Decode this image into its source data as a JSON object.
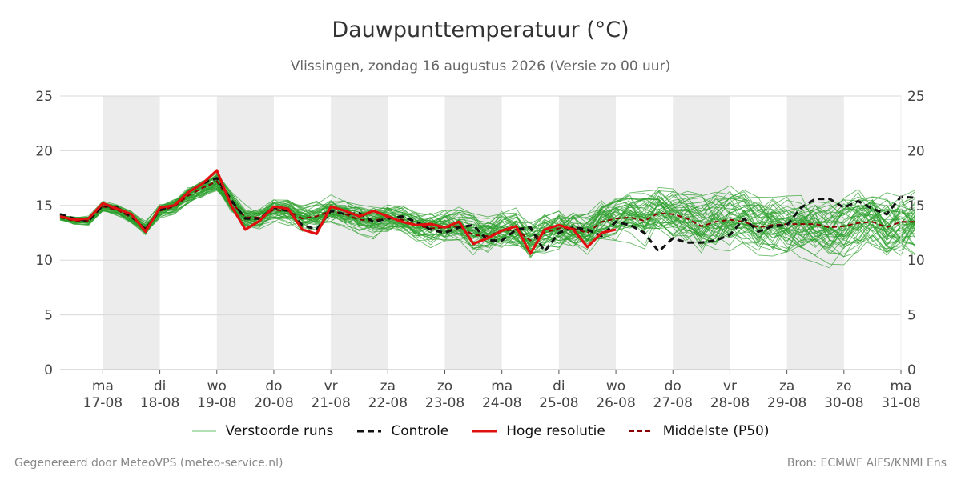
{
  "title": "Dauwpunttemperatuur (°C)",
  "subtitle": "Vlissingen, zondag 16 augustus 2026 (Versie zo 00 uur)",
  "footer": {
    "left": "Gegenereerd door MeteoVPS (meteo-service.nl)",
    "right": "Bron: ECMWF AIFS/KNMI Ens"
  },
  "legend": [
    {
      "label": "Verstoorde runs",
      "color": "#2ca02c",
      "style": "thin"
    },
    {
      "label": "Controle",
      "color": "#111111",
      "style": "dashed"
    },
    {
      "label": "Hoge resolutie",
      "color": "#e01010",
      "style": "solid"
    },
    {
      "label": "Middelste (P50)",
      "color": "#8b0000",
      "style": "dashed"
    }
  ],
  "chart_data": {
    "type": "line",
    "xlabel": "",
    "ylabel": "",
    "ylim": [
      0,
      25
    ],
    "yticks": [
      0,
      5,
      10,
      15,
      20,
      25
    ],
    "x_start": "2026-08-16T06:00",
    "x_end": "2026-08-31T00:00",
    "x_step_hours": 6,
    "day_ticks": [
      {
        "day": "ma",
        "date": "17-08",
        "shaded": true
      },
      {
        "day": "di",
        "date": "18-08",
        "shaded": false
      },
      {
        "day": "wo",
        "date": "19-08",
        "shaded": true
      },
      {
        "day": "do",
        "date": "20-08",
        "shaded": false
      },
      {
        "day": "vr",
        "date": "21-08",
        "shaded": true
      },
      {
        "day": "za",
        "date": "22-08",
        "shaded": false
      },
      {
        "day": "zo",
        "date": "23-08",
        "shaded": true
      },
      {
        "day": "ma",
        "date": "24-08",
        "shaded": false
      },
      {
        "day": "di",
        "date": "25-08",
        "shaded": true
      },
      {
        "day": "wo",
        "date": "26-08",
        "shaded": false
      },
      {
        "day": "do",
        "date": "27-08",
        "shaded": true
      },
      {
        "day": "vr",
        "date": "28-08",
        "shaded": false
      },
      {
        "day": "za",
        "date": "29-08",
        "shaded": true
      },
      {
        "day": "zo",
        "date": "30-08",
        "shaded": false
      },
      {
        "day": "ma",
        "date": "31-08",
        "shaded": false
      }
    ],
    "grid": true,
    "series": [
      {
        "name": "Controle",
        "color": "#111111",
        "dash": "8,5",
        "values": [
          14.2,
          13.8,
          13.6,
          15.0,
          14.8,
          14.0,
          12.8,
          14.6,
          15.0,
          16.2,
          17.0,
          17.5,
          15.5,
          13.8,
          13.8,
          14.8,
          14.5,
          13.2,
          12.8,
          14.5,
          14.2,
          14.3,
          13.5,
          13.8,
          14.0,
          13.5,
          12.8,
          12.5,
          13.0,
          13.2,
          11.8,
          11.8,
          12.8,
          13.0,
          10.8,
          12.5,
          13.0,
          12.8,
          12.2,
          13.5,
          13.2,
          12.5,
          10.8,
          12.0,
          11.6,
          11.6,
          11.8,
          12.3,
          13.8,
          12.6,
          13.1,
          13.2,
          14.8,
          15.6,
          15.6,
          14.8,
          15.4,
          14.7,
          14.2,
          15.8,
          15.7
        ]
      },
      {
        "name": "Hoge resolutie",
        "color": "#e01010",
        "dash": "",
        "values": [
          14.0,
          13.7,
          13.8,
          15.2,
          14.7,
          14.2,
          12.6,
          14.8,
          15.0,
          16.2,
          17.0,
          18.2,
          15.0,
          12.8,
          13.6,
          14.9,
          14.7,
          12.8,
          12.4,
          14.9,
          14.5,
          14.0,
          14.5,
          14.0,
          13.5,
          13.2,
          13.3,
          13.0,
          13.5,
          11.5,
          12.0,
          12.7,
          13.1,
          10.6,
          12.8,
          13.2,
          12.8,
          11.2,
          12.5,
          12.8
        ]
      },
      {
        "name": "Middelste (P50)",
        "color": "#8b0000",
        "dash": "6,4",
        "values": [
          13.9,
          13.6,
          13.6,
          14.9,
          14.6,
          13.9,
          12.9,
          14.5,
          14.9,
          15.9,
          16.6,
          17.2,
          15.3,
          13.9,
          13.9,
          14.6,
          14.5,
          13.8,
          14.0,
          14.5,
          14.2,
          13.7,
          13.6,
          13.9,
          13.7,
          13.2,
          12.9,
          13.0,
          13.1,
          12.3,
          12.2,
          12.7,
          12.8,
          11.8,
          12.5,
          12.9,
          12.9,
          12.5,
          13.5,
          13.8,
          13.9,
          13.6,
          14.3,
          14.2,
          13.8,
          13.1,
          13.5,
          13.7,
          13.5,
          13.0,
          13.2,
          13.3,
          13.3,
          13.3,
          13.0,
          13.1,
          13.4,
          13.5,
          13.0,
          13.5,
          13.5
        ]
      }
    ],
    "ensemble_members": 50,
    "ensemble_color": "#2ca02c"
  }
}
